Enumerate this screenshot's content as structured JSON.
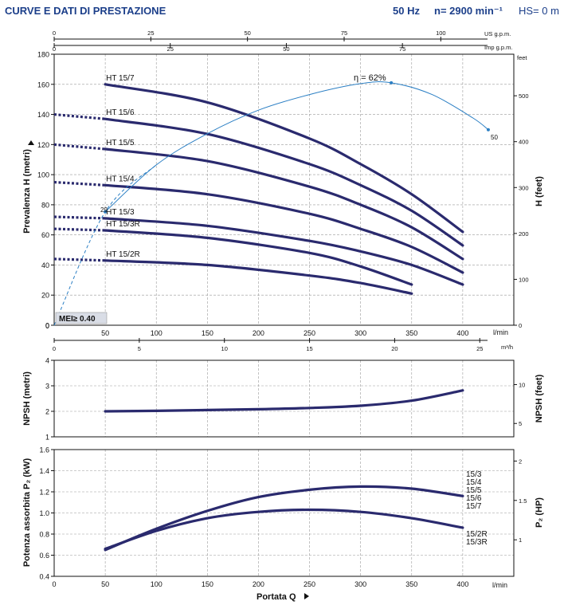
{
  "header": {
    "title": "CURVE E DATI DI PRESTAZIONE",
    "freq": "50 Hz",
    "speed": "n= 2900 min⁻¹",
    "hs": "HS= 0 m"
  },
  "units": {
    "us_gpm": "US g.p.m.",
    "imp_gpm": "Imp g.p.m.",
    "feet": "feet",
    "lmin": "l/min",
    "m3h": "m³/h"
  },
  "chart_data": [
    {
      "id": "head",
      "type": "line",
      "title": "Prevalenza H",
      "ylabel": "Prevalenza H (metri)",
      "ylabel_right": "H (feet)",
      "xlabel": "l/min",
      "xlim": [
        0,
        450
      ],
      "ylim": [
        0,
        180
      ],
      "x_ticks": [
        0,
        50,
        100,
        150,
        200,
        250,
        300,
        350,
        400
      ],
      "y_ticks": [
        0,
        20,
        40,
        60,
        80,
        100,
        120,
        140,
        160,
        180
      ],
      "top_us_ticks": [
        0,
        25,
        50,
        75,
        100
      ],
      "top_imp_ticks": [
        0,
        25,
        50,
        75
      ],
      "m3h_ticks": [
        0,
        5,
        10,
        15,
        20,
        25
      ],
      "feet_ticks": [
        0,
        100,
        200,
        300,
        400,
        500
      ],
      "series": [
        {
          "name": "HT 15/7",
          "x": [
            50,
            150,
            250,
            300,
            350,
            400
          ],
          "y": [
            160,
            148,
            124,
            107,
            87,
            62
          ]
        },
        {
          "name": "HT 15/6",
          "x": [
            50,
            150,
            250,
            300,
            350,
            400
          ],
          "y": [
            137,
            127,
            107,
            93,
            76,
            53
          ]
        },
        {
          "name": "HT 15/5",
          "x": [
            50,
            150,
            250,
            300,
            350,
            400
          ],
          "y": [
            117,
            109,
            92,
            80,
            65,
            44
          ]
        },
        {
          "name": "HT 15/4",
          "x": [
            50,
            150,
            250,
            300,
            350,
            400
          ],
          "y": [
            93,
            87,
            74,
            64,
            52,
            35
          ]
        },
        {
          "name": "HT 15/3",
          "x": [
            50,
            150,
            250,
            300,
            350,
            400
          ],
          "y": [
            71,
            66,
            56,
            49,
            40,
            27
          ]
        },
        {
          "name": "HT 15/3R",
          "x": [
            50,
            150,
            250,
            300,
            350
          ],
          "y": [
            63,
            58,
            48,
            39,
            27
          ]
        },
        {
          "name": "HT 15/2R",
          "x": [
            50,
            150,
            250,
            300,
            350
          ],
          "y": [
            43,
            40,
            33,
            28,
            21
          ]
        }
      ],
      "dotted_extensions": [
        {
          "y0": 140,
          "y1": 137
        },
        {
          "y0": 120,
          "y1": 117
        },
        {
          "y0": 95,
          "y1": 93
        },
        {
          "y0": 72,
          "y1": 71
        },
        {
          "y0": 64,
          "y1": 63
        },
        {
          "y0": 44,
          "y1": 43
        }
      ],
      "efficiency": {
        "name": "η",
        "peak_label": "η = 62%",
        "peak_value": "62%",
        "x": [
          0,
          50,
          100,
          150,
          200,
          250,
          300,
          330,
          370,
          410,
          425
        ],
        "eta": [
          0,
          29,
          41,
          49,
          55,
          59,
          61.8,
          62,
          59,
          53,
          50
        ],
        "marker_left": "29",
        "marker_right": "50",
        "scale_max_eta": 62,
        "scale_max_y": 161
      },
      "mei_label": "MEI≥ 0.40"
    },
    {
      "id": "npsh",
      "type": "line",
      "ylabel": "NPSH (metri)",
      "ylabel_right": "NPSH (feet)",
      "xlim": [
        0,
        450
      ],
      "ylim": [
        1,
        4
      ],
      "y_ticks": [
        1,
        2,
        3,
        4
      ],
      "feet_ticks": [
        5,
        10
      ],
      "series": [
        {
          "name": "NPSH",
          "x": [
            50,
            100,
            150,
            200,
            250,
            300,
            350,
            400
          ],
          "y": [
            2.0,
            2.02,
            2.05,
            2.08,
            2.13,
            2.22,
            2.42,
            2.82
          ]
        }
      ]
    },
    {
      "id": "power",
      "type": "line",
      "ylabel": "Potenza assorbita P₂ (kW)",
      "ylabel_right": "P₂ (HP)",
      "xlabel": "Portata Q",
      "xlabel_unit": "l/min",
      "xlim": [
        0,
        450
      ],
      "ylim": [
        0.4,
        1.6
      ],
      "x_ticks": [
        0,
        50,
        100,
        150,
        200,
        250,
        300,
        350,
        400
      ],
      "y_ticks": [
        0.4,
        0.6,
        0.8,
        1.0,
        1.2,
        1.4,
        1.6
      ],
      "hp_ticks": [
        1,
        1.5,
        2
      ],
      "series": [
        {
          "name": "upper",
          "x": [
            50,
            100,
            150,
            200,
            250,
            300,
            350,
            400
          ],
          "y": [
            0.65,
            0.85,
            1.02,
            1.15,
            1.22,
            1.25,
            1.23,
            1.16
          ]
        },
        {
          "name": "lower",
          "x": [
            50,
            100,
            150,
            200,
            250,
            300,
            350,
            400
          ],
          "y": [
            0.66,
            0.83,
            0.95,
            1.01,
            1.03,
            1.01,
            0.95,
            0.86
          ]
        }
      ],
      "upper_labels": [
        "15/3",
        "15/4",
        "15/5",
        "15/6",
        "15/7"
      ],
      "lower_labels": [
        "15/2R",
        "15/3R"
      ]
    }
  ]
}
